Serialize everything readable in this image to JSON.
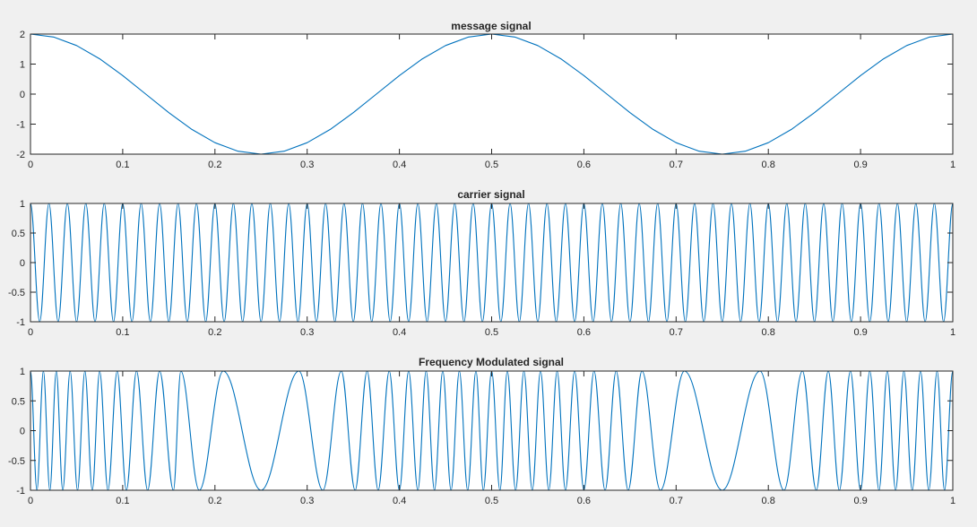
{
  "chart_data": [
    {
      "type": "line",
      "title": "message signal",
      "xlabel": "",
      "ylabel": "",
      "xlim": [
        0,
        1
      ],
      "ylim": [
        -2,
        2
      ],
      "xticks": [
        0,
        0.1,
        0.2,
        0.3,
        0.4,
        0.5,
        0.6,
        0.7,
        0.8,
        0.9,
        1
      ],
      "xtick_labels": [
        "0",
        "0.1",
        "0.2",
        "0.3",
        "0.4",
        "0.5",
        "0.6",
        "0.7",
        "0.8",
        "0.9",
        "1"
      ],
      "yticks": [
        2,
        1,
        0,
        -1,
        -2
      ],
      "ytick_labels": [
        "2",
        "1",
        "0",
        "-1",
        "-2"
      ],
      "grid": false,
      "series": [
        {
          "values": [
            [
              0.0,
              2.0
            ],
            [
              0.025,
              1.902
            ],
            [
              0.05,
              1.618
            ],
            [
              0.075,
              1.176
            ],
            [
              0.1,
              0.618
            ],
            [
              0.125,
              0.0
            ],
            [
              0.15,
              -0.618
            ],
            [
              0.175,
              -1.176
            ],
            [
              0.2,
              -1.618
            ],
            [
              0.225,
              -1.902
            ],
            [
              0.25,
              -2.0
            ],
            [
              0.275,
              -1.902
            ],
            [
              0.3,
              -1.618
            ],
            [
              0.325,
              -1.176
            ],
            [
              0.35,
              -0.618
            ],
            [
              0.375,
              0.0
            ],
            [
              0.4,
              0.618
            ],
            [
              0.425,
              1.176
            ],
            [
              0.45,
              1.618
            ],
            [
              0.475,
              1.902
            ],
            [
              0.5,
              2.0
            ],
            [
              0.525,
              1.902
            ],
            [
              0.55,
              1.618
            ],
            [
              0.575,
              1.176
            ],
            [
              0.6,
              0.618
            ],
            [
              0.625,
              0.0
            ],
            [
              0.65,
              -0.618
            ],
            [
              0.675,
              -1.176
            ],
            [
              0.7,
              -1.618
            ],
            [
              0.725,
              -1.902
            ],
            [
              0.75,
              -2.0
            ],
            [
              0.775,
              -1.902
            ],
            [
              0.8,
              -1.618
            ],
            [
              0.825,
              -1.176
            ],
            [
              0.85,
              -0.618
            ],
            [
              0.875,
              0.0
            ],
            [
              0.9,
              0.618
            ],
            [
              0.925,
              1.176
            ],
            [
              0.95,
              1.618
            ],
            [
              0.975,
              1.902
            ],
            [
              1.0,
              2.0
            ]
          ],
          "color": "#0072bd"
        }
      ]
    },
    {
      "type": "line",
      "title": "carrier signal",
      "xlabel": "",
      "ylabel": "",
      "xlim": [
        0,
        1
      ],
      "ylim": [
        -1,
        1
      ],
      "xticks": [
        0,
        0.1,
        0.2,
        0.3,
        0.4,
        0.5,
        0.6,
        0.7,
        0.8,
        0.9,
        1
      ],
      "xtick_labels": [
        "0",
        "0.1",
        "0.2",
        "0.3",
        "0.4",
        "0.5",
        "0.6",
        "0.7",
        "0.8",
        "0.9",
        "1"
      ],
      "yticks": [
        1,
        0.5,
        0,
        -0.5,
        -1
      ],
      "ytick_labels": [
        "1",
        "0.5",
        "0",
        "-0.5",
        "-1"
      ],
      "grid": false,
      "series": [
        {
          "values": [
            [
              0.0,
              1
            ],
            [
              0.01,
              -1
            ],
            [
              0.02,
              1
            ],
            [
              0.03,
              -1
            ],
            [
              0.04,
              1
            ],
            [
              0.05,
              -1
            ],
            [
              0.06,
              1
            ],
            [
              0.07,
              -1
            ],
            [
              0.08,
              1
            ],
            [
              0.09,
              -1
            ],
            [
              0.1,
              1
            ],
            [
              0.11,
              -1
            ],
            [
              0.12,
              1
            ],
            [
              0.13,
              -1
            ],
            [
              0.14,
              1
            ],
            [
              0.15,
              -1
            ],
            [
              0.16,
              1
            ],
            [
              0.17,
              -1
            ],
            [
              0.18,
              1
            ],
            [
              0.19,
              -1
            ],
            [
              0.2,
              1
            ],
            [
              0.21,
              -1
            ],
            [
              0.22,
              1
            ],
            [
              0.23,
              -1
            ],
            [
              0.24,
              1
            ],
            [
              0.25,
              -1
            ],
            [
              0.26,
              1
            ],
            [
              0.27,
              -1
            ],
            [
              0.28,
              1
            ],
            [
              0.29,
              -1
            ],
            [
              0.3,
              1
            ],
            [
              0.31,
              -1
            ],
            [
              0.32,
              1
            ],
            [
              0.33,
              -1
            ],
            [
              0.34,
              1
            ],
            [
              0.35,
              -1
            ],
            [
              0.36,
              1
            ],
            [
              0.37,
              -1
            ],
            [
              0.38,
              1
            ],
            [
              0.39,
              -1
            ],
            [
              0.4,
              1
            ],
            [
              0.41,
              -1
            ],
            [
              0.42,
              1
            ],
            [
              0.43,
              -1
            ],
            [
              0.44,
              1
            ],
            [
              0.45,
              -1
            ],
            [
              0.46,
              1
            ],
            [
              0.47,
              -1
            ],
            [
              0.48,
              1
            ],
            [
              0.49,
              -1
            ],
            [
              0.5,
              1
            ],
            [
              0.51,
              -1
            ],
            [
              0.52,
              1
            ],
            [
              0.53,
              -1
            ],
            [
              0.54,
              1
            ],
            [
              0.55,
              -1
            ],
            [
              0.56,
              1
            ],
            [
              0.57,
              -1
            ],
            [
              0.58,
              1
            ],
            [
              0.59,
              -1
            ],
            [
              0.6,
              1
            ],
            [
              0.61,
              -1
            ],
            [
              0.62,
              1
            ],
            [
              0.63,
              -1
            ],
            [
              0.64,
              1
            ],
            [
              0.65,
              -1
            ],
            [
              0.66,
              1
            ],
            [
              0.67,
              -1
            ],
            [
              0.68,
              1
            ],
            [
              0.69,
              -1
            ],
            [
              0.7,
              1
            ],
            [
              0.71,
              -1
            ],
            [
              0.72,
              1
            ],
            [
              0.73,
              -1
            ],
            [
              0.74,
              1
            ],
            [
              0.75,
              -1
            ],
            [
              0.76,
              1
            ],
            [
              0.77,
              -1
            ],
            [
              0.78,
              1
            ],
            [
              0.79,
              -1
            ],
            [
              0.8,
              1
            ],
            [
              0.81,
              -1
            ],
            [
              0.82,
              1
            ],
            [
              0.83,
              -1
            ],
            [
              0.84,
              1
            ],
            [
              0.85,
              -1
            ],
            [
              0.86,
              1
            ],
            [
              0.87,
              -1
            ],
            [
              0.88,
              1
            ],
            [
              0.89,
              -1
            ],
            [
              0.9,
              1
            ],
            [
              0.91,
              -1
            ],
            [
              0.92,
              1
            ],
            [
              0.93,
              -1
            ],
            [
              0.94,
              1
            ],
            [
              0.95,
              -1
            ],
            [
              0.96,
              1
            ],
            [
              0.97,
              -1
            ],
            [
              0.98,
              1
            ],
            [
              0.99,
              -1
            ],
            [
              1.0,
              1
            ]
          ],
          "color": "#0072bd"
        }
      ]
    },
    {
      "type": "line",
      "title": "Frequency Modulated signal",
      "xlabel": "",
      "ylabel": "",
      "xlim": [
        0,
        1
      ],
      "ylim": [
        -1,
        1
      ],
      "xticks": [
        0,
        0.1,
        0.2,
        0.3,
        0.4,
        0.5,
        0.6,
        0.7,
        0.8,
        0.9,
        1
      ],
      "xtick_labels": [
        "0",
        "0.1",
        "0.2",
        "0.3",
        "0.4",
        "0.5",
        "0.6",
        "0.7",
        "0.8",
        "0.9",
        "1"
      ],
      "yticks": [
        1,
        0.5,
        0,
        -0.5,
        -1
      ],
      "ytick_labels": [
        "1",
        "0.5",
        "0",
        "-0.5",
        "-1"
      ],
      "grid": false,
      "series": [
        {
          "values": [
            [
              0.0,
              1
            ],
            [
              0.007,
              -1
            ],
            [
              0.014,
              1
            ],
            [
              0.021,
              -1
            ],
            [
              0.028,
              1
            ],
            [
              0.035,
              -1
            ],
            [
              0.043,
              1
            ],
            [
              0.051,
              -1
            ],
            [
              0.059,
              1
            ],
            [
              0.067,
              -1
            ],
            [
              0.075,
              1
            ],
            [
              0.084,
              -1
            ],
            [
              0.094,
              1
            ],
            [
              0.104,
              -1
            ],
            [
              0.115,
              1
            ],
            [
              0.127,
              -1
            ],
            [
              0.14,
              1
            ],
            [
              0.155,
              -1
            ],
            [
              0.163,
              1
            ],
            [
              0.183,
              -1
            ],
            [
              0.209,
              1
            ],
            [
              0.25,
              -1
            ],
            [
              0.291,
              1
            ],
            [
              0.317,
              -1
            ],
            [
              0.337,
              1
            ],
            [
              0.352,
              -1
            ],
            [
              0.365,
              1
            ],
            [
              0.377,
              -1
            ],
            [
              0.389,
              1
            ],
            [
              0.4,
              -1
            ],
            [
              0.41,
              1
            ],
            [
              0.42,
              -1
            ],
            [
              0.429,
              1
            ],
            [
              0.438,
              -1
            ],
            [
              0.447,
              1
            ],
            [
              0.456,
              -1
            ],
            [
              0.465,
              1
            ],
            [
              0.474,
              -1
            ],
            [
              0.483,
              1
            ],
            [
              0.491,
              -1
            ],
            [
              0.5,
              1
            ],
            [
              0.509,
              -1
            ],
            [
              0.517,
              1
            ],
            [
              0.526,
              -1
            ],
            [
              0.535,
              1
            ],
            [
              0.544,
              -1
            ],
            [
              0.553,
              1
            ],
            [
              0.562,
              -1
            ],
            [
              0.571,
              1
            ],
            [
              0.58,
              -1
            ],
            [
              0.59,
              1
            ],
            [
              0.6,
              -1
            ],
            [
              0.611,
              1
            ],
            [
              0.623,
              -1
            ],
            [
              0.635,
              1
            ],
            [
              0.648,
              -1
            ],
            [
              0.663,
              1
            ],
            [
              0.683,
              -1
            ],
            [
              0.709,
              1
            ],
            [
              0.75,
              -1
            ],
            [
              0.791,
              1
            ],
            [
              0.817,
              -1
            ],
            [
              0.837,
              1
            ],
            [
              0.852,
              -1
            ],
            [
              0.865,
              1
            ],
            [
              0.877,
              -1
            ],
            [
              0.889,
              1
            ],
            [
              0.9,
              -1
            ],
            [
              0.91,
              1
            ],
            [
              0.92,
              -1
            ],
            [
              0.929,
              1
            ],
            [
              0.938,
              -1
            ],
            [
              0.947,
              1
            ],
            [
              0.956,
              -1
            ],
            [
              0.965,
              1
            ],
            [
              0.974,
              -1
            ],
            [
              0.983,
              1
            ],
            [
              0.991,
              -1
            ],
            [
              1.0,
              1
            ]
          ],
          "color": "#0072bd"
        }
      ]
    }
  ]
}
